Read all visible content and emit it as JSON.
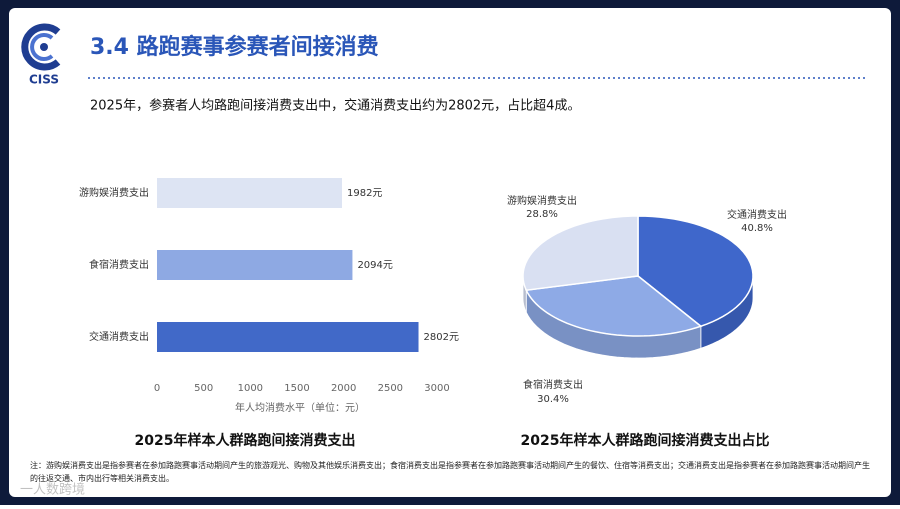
{
  "header": {
    "logo_text": "CISS",
    "title": "3.4 路跑赛事参赛者间接消费",
    "subtitle": "2025年，参赛者人均路跑间接消费支出中，交通消费支出约为2802元，占比超4成。"
  },
  "chart_data": [
    {
      "type": "bar",
      "orientation": "horizontal",
      "title": "2025年样本人群路跑间接消费支出",
      "x_label": "年人均消费水平（单位：元）",
      "categories": [
        "游购娱消费支出",
        "食宿消费支出",
        "交通消费支出"
      ],
      "values": [
        1982,
        2094,
        2802
      ],
      "value_labels": [
        "1982元",
        "2094元",
        "2802元"
      ],
      "colors": [
        "#dde4f3",
        "#8ea9e3",
        "#4169c8"
      ],
      "xlim": [
        0,
        3000
      ],
      "xticks": [
        0,
        500,
        1000,
        1500,
        2000,
        2500,
        3000
      ]
    },
    {
      "type": "pie",
      "title": "2025年样本人群路跑间接消费支出占比",
      "categories": [
        "交通消费支出",
        "食宿消费支出",
        "游购娱消费支出"
      ],
      "values": [
        40.8,
        30.4,
        28.8
      ],
      "value_labels": [
        "40.8%",
        "30.4%",
        "28.8%"
      ],
      "colors": [
        "#3f67cb",
        "#8eaae6",
        "#d9e0f2"
      ]
    }
  ],
  "footnote": "注：游购娱消费支出是指参赛者在参加路跑赛事活动期间产生的旅游观光、购物及其他娱乐消费支出；食宿消费支出是指参赛者在参加路跑赛事活动期间产生的餐饮、住宿等消费支出；交通消费支出是指参赛者在参加路跑赛事活动期间产生的往返交通、市内出行等相关消费支出。",
  "watermark": "一人数跨境"
}
